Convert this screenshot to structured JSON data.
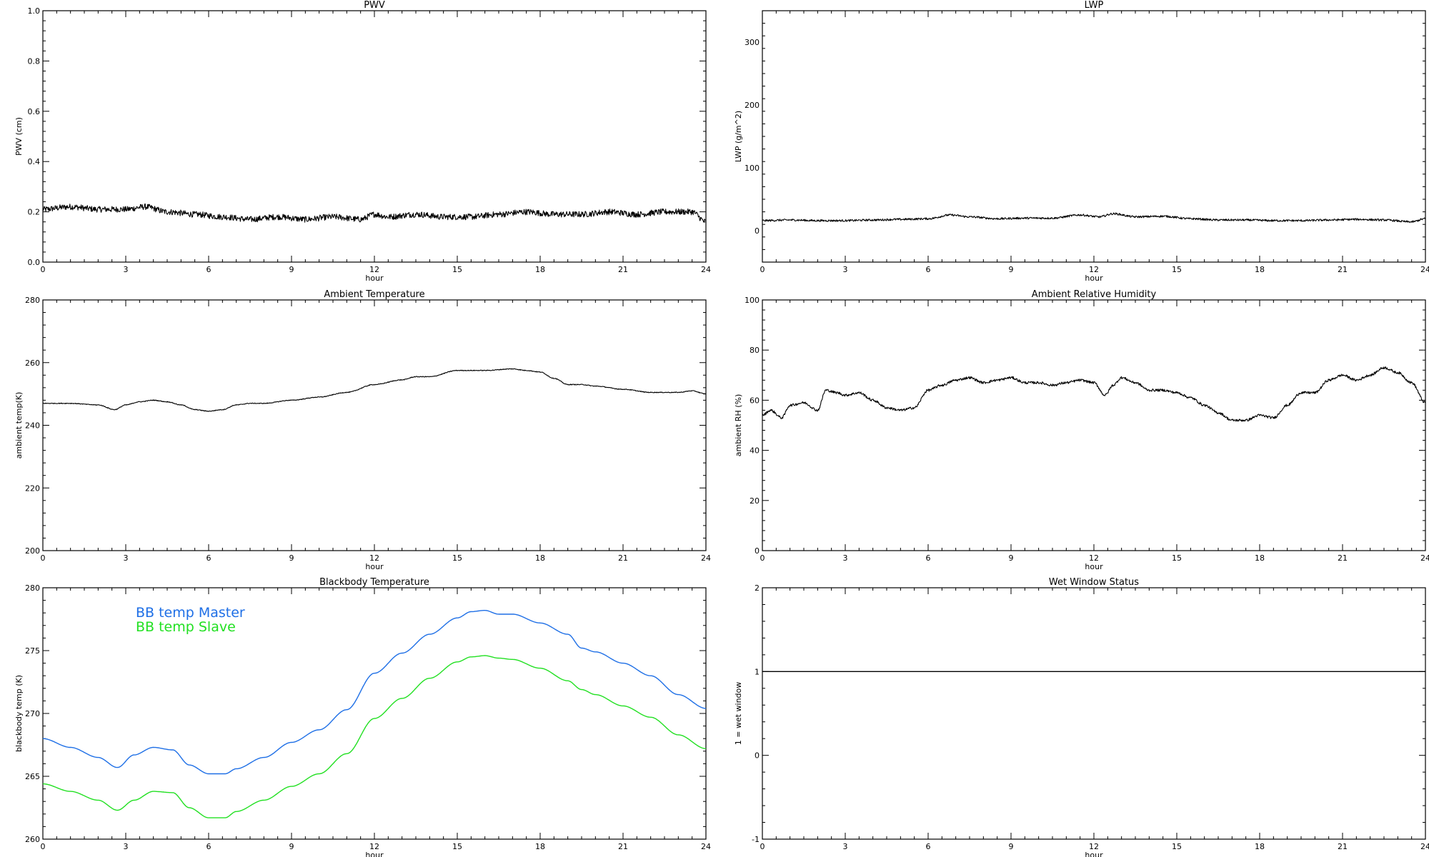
{
  "chart_data": [
    {
      "id": "pwv",
      "type": "line",
      "title": "PWV",
      "xlabel": "hour",
      "ylabel": "PWV (cm)",
      "xlim": [
        0,
        24
      ],
      "ylim": [
        0,
        1
      ],
      "xticks": [
        0,
        3,
        6,
        9,
        12,
        15,
        18,
        21,
        24
      ],
      "yticks": [
        0.0,
        0.2,
        0.4,
        0.6,
        0.8,
        1.0
      ],
      "ytick_labels": [
        "0.0",
        "0.2",
        "0.4",
        "0.6",
        "0.8",
        "1.0"
      ],
      "grid": false,
      "series": [
        {
          "color": "#000000",
          "noise": 0.012,
          "x": [
            0,
            1,
            2,
            3,
            3.7,
            4.5,
            5.5,
            6.5,
            7.5,
            8.5,
            9.5,
            10.5,
            11.5,
            12,
            12.5,
            13.5,
            14.5,
            15.5,
            16.5,
            17.5,
            18.5,
            19.5,
            20.5,
            21.5,
            22.5,
            23.5,
            24
          ],
          "y": [
            0.21,
            0.22,
            0.21,
            0.21,
            0.22,
            0.2,
            0.19,
            0.18,
            0.17,
            0.18,
            0.17,
            0.18,
            0.17,
            0.19,
            0.18,
            0.19,
            0.18,
            0.18,
            0.19,
            0.2,
            0.19,
            0.19,
            0.2,
            0.19,
            0.2,
            0.2,
            0.16
          ]
        }
      ]
    },
    {
      "id": "lwp",
      "type": "line",
      "title": "LWP",
      "xlabel": "hour",
      "ylabel": "LWP (g/m^2)",
      "xlim": [
        0,
        24
      ],
      "ylim": [
        -50,
        350
      ],
      "xticks": [
        0,
        3,
        6,
        9,
        12,
        15,
        18,
        21,
        24
      ],
      "yticks": [
        0,
        100,
        200,
        300
      ],
      "ytick_labels": [
        "0",
        "100",
        "200",
        "300"
      ],
      "grid": false,
      "series": [
        {
          "color": "#000000",
          "noise": 1.6,
          "x": [
            0,
            1,
            2,
            3,
            4,
            5,
            6,
            6.8,
            7.5,
            8.5,
            9.5,
            10.5,
            11.5,
            12.2,
            12.7,
            13.5,
            14.5,
            15.5,
            16.5,
            17.5,
            18.5,
            19.5,
            20.5,
            21.5,
            22.5,
            23.5,
            24
          ],
          "y": [
            16,
            17,
            16,
            16,
            17,
            18,
            19,
            25,
            22,
            19,
            20,
            20,
            25,
            22,
            27,
            22,
            23,
            19,
            17,
            17,
            16,
            16,
            17,
            18,
            17,
            14,
            19
          ]
        }
      ]
    },
    {
      "id": "ambient_temp",
      "type": "line",
      "title": "Ambient Temperature",
      "xlabel": "hour",
      "ylabel": "ambient temp(K)",
      "xlim": [
        0,
        24
      ],
      "ylim": [
        200,
        280
      ],
      "xticks": [
        0,
        3,
        6,
        9,
        12,
        15,
        18,
        21,
        24
      ],
      "yticks": [
        200,
        220,
        240,
        260,
        280
      ],
      "ytick_labels": [
        "200",
        "220",
        "240",
        "260",
        "280"
      ],
      "grid": false,
      "series": [
        {
          "color": "#000000",
          "noise": 0.12,
          "x": [
            0,
            1,
            2,
            2.6,
            3,
            3.5,
            4,
            4.5,
            5,
            5.5,
            6,
            6.5,
            7,
            7.5,
            8,
            9,
            10,
            11,
            12,
            13,
            13.5,
            14,
            15,
            16,
            17,
            17.5,
            18,
            18.5,
            19,
            19.5,
            20,
            21,
            22,
            23,
            23.5,
            24
          ],
          "y": [
            247,
            247,
            246.5,
            245,
            246.5,
            247.5,
            248,
            247.5,
            246.5,
            245,
            244.5,
            245,
            246.5,
            247,
            247,
            248,
            249,
            250.5,
            253,
            254.5,
            255.5,
            255.5,
            257.5,
            257.5,
            258,
            257.5,
            257,
            255,
            253,
            253,
            252.5,
            251.5,
            250.5,
            250.5,
            251,
            250
          ]
        }
      ]
    },
    {
      "id": "ambient_rh",
      "type": "line",
      "title": "Ambient Relative Humidity",
      "xlabel": "hour",
      "ylabel": "ambient RH (%)",
      "xlim": [
        0,
        24
      ],
      "ylim": [
        0,
        100
      ],
      "xticks": [
        0,
        3,
        6,
        9,
        12,
        15,
        18,
        21,
        24
      ],
      "yticks": [
        0,
        20,
        40,
        60,
        80,
        100
      ],
      "ytick_labels": [
        "0",
        "20",
        "40",
        "60",
        "80",
        "100"
      ],
      "grid": false,
      "series": [
        {
          "color": "#000000",
          "noise": 0.5,
          "x": [
            0,
            0.3,
            0.7,
            1,
            1.5,
            2,
            2.3,
            2.7,
            3,
            3.5,
            4,
            4.5,
            5,
            5.5,
            6,
            6.5,
            7,
            7.5,
            8,
            8.5,
            9,
            9.5,
            10,
            10.5,
            11,
            11.5,
            12,
            12.4,
            12.7,
            13,
            13.5,
            14,
            14.5,
            15,
            15.5,
            16,
            16.5,
            17,
            17.5,
            18,
            18.5,
            19,
            19.5,
            20,
            20.5,
            21,
            21.5,
            22,
            22.5,
            23,
            23.5,
            24
          ],
          "y": [
            54,
            56,
            53,
            58,
            59,
            56,
            64,
            63,
            62,
            63,
            60,
            57,
            56,
            57,
            64,
            66,
            68,
            69,
            67,
            68,
            69,
            67,
            67,
            66,
            67,
            68,
            67,
            62,
            66,
            69,
            67,
            64,
            64,
            63,
            61,
            58,
            55,
            52,
            52,
            54,
            53,
            58,
            63,
            63,
            68,
            70,
            68,
            70,
            73,
            71,
            67,
            59
          ]
        }
      ]
    },
    {
      "id": "blackbody_temp",
      "type": "line",
      "title": "Blackbody Temperature",
      "xlabel": "hour",
      "ylabel": "blackbody temp (K)",
      "xlim": [
        0,
        24
      ],
      "ylim": [
        260,
        280
      ],
      "xticks": [
        0,
        3,
        6,
        9,
        12,
        15,
        18,
        21,
        24
      ],
      "yticks": [
        260,
        265,
        270,
        275,
        280
      ],
      "ytick_labels": [
        "260",
        "265",
        "270",
        "275",
        "280"
      ],
      "grid": false,
      "series": [
        {
          "name": "BB temp Master",
          "color": "#1e6fe6",
          "noise": 0,
          "x": [
            0,
            1,
            2,
            2.7,
            3.3,
            4,
            4.7,
            5.3,
            6,
            6.6,
            7,
            8,
            9,
            10,
            11,
            12,
            13,
            14,
            15,
            15.5,
            16,
            16.5,
            17,
            18,
            19,
            19.5,
            20,
            21,
            22,
            23,
            24
          ],
          "y": [
            268,
            267.3,
            266.5,
            265.7,
            266.7,
            267.3,
            267.1,
            265.9,
            265.2,
            265.2,
            265.6,
            266.5,
            267.7,
            268.7,
            270.3,
            273.2,
            274.8,
            276.3,
            277.6,
            278.1,
            278.2,
            277.9,
            277.9,
            277.2,
            276.3,
            275.2,
            274.9,
            274,
            273,
            271.5,
            270.4
          ]
        },
        {
          "name": "BB temp Slave",
          "color": "#22e022",
          "noise": 0,
          "x": [
            0,
            1,
            2,
            2.7,
            3.3,
            4,
            4.7,
            5.3,
            6,
            6.6,
            7,
            8,
            9,
            10,
            11,
            12,
            13,
            14,
            15,
            15.5,
            16,
            16.5,
            17,
            18,
            19,
            19.5,
            20,
            21,
            22,
            23,
            24
          ],
          "y": [
            264.4,
            263.8,
            263.1,
            262.3,
            263.1,
            263.8,
            263.7,
            262.5,
            261.7,
            261.7,
            262.2,
            263.1,
            264.2,
            265.2,
            266.8,
            269.6,
            271.2,
            272.8,
            274.1,
            274.5,
            274.6,
            274.4,
            274.3,
            273.6,
            272.6,
            271.9,
            271.5,
            270.6,
            269.7,
            268.3,
            267.2
          ]
        }
      ],
      "legend": "top-left"
    },
    {
      "id": "wet_window",
      "type": "line",
      "title": "Wet Window Status",
      "xlabel": "hour",
      "ylabel": "1 = wet window",
      "xlim": [
        0,
        24
      ],
      "ylim": [
        -1,
        2
      ],
      "xticks": [
        0,
        3,
        6,
        9,
        12,
        15,
        18,
        21,
        24
      ],
      "yticks": [
        -1,
        0,
        1,
        2
      ],
      "ytick_labels": [
        "-1",
        "0",
        "1",
        "2"
      ],
      "grid": false,
      "series": [
        {
          "color": "#000000",
          "noise": 0,
          "x": [
            0,
            24
          ],
          "y": [
            1,
            1
          ]
        }
      ]
    }
  ]
}
